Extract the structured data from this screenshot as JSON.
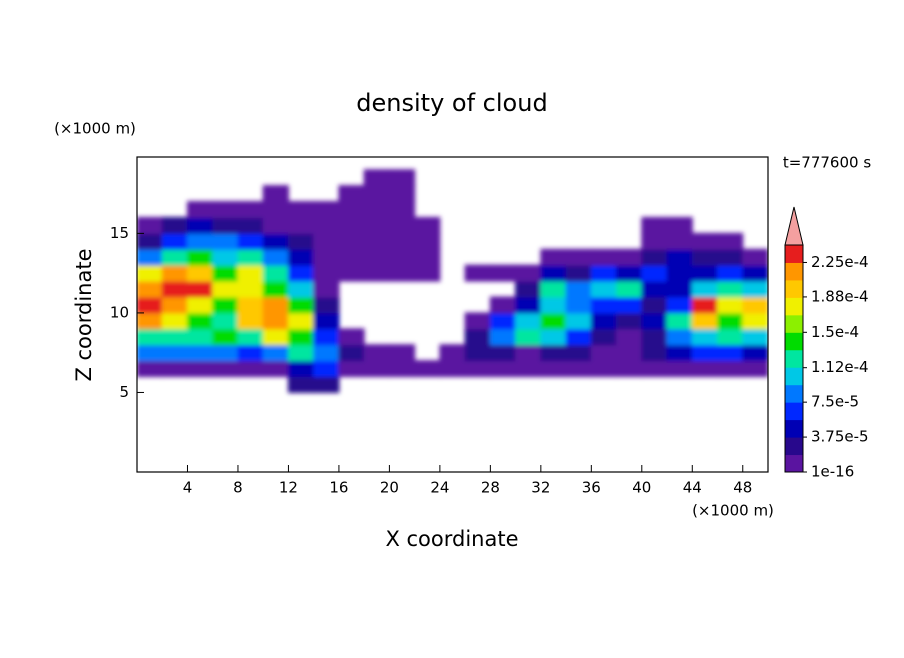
{
  "chart_data": {
    "type": "contour",
    "title": "density of cloud",
    "x_label": "X coordinate",
    "y_label": "Z coordinate",
    "x_unit": "(×1000 m)",
    "y_unit": "(×1000 m)",
    "time_label": "t=777600 s",
    "xlim": [
      0,
      50
    ],
    "ylim": [
      0,
      19.8
    ],
    "xticks": [
      4,
      8,
      12,
      16,
      20,
      24,
      28,
      32,
      36,
      40,
      44,
      48
    ],
    "yticks": [
      5,
      10,
      15
    ],
    "x": [
      1,
      3,
      5,
      7,
      9,
      11,
      13,
      15,
      17,
      19,
      21,
      23,
      25,
      27,
      29,
      31,
      33,
      35,
      37,
      39,
      41,
      43,
      45,
      47,
      49
    ],
    "y": [
      5.5,
      6.5,
      7.5,
      8.5,
      9.5,
      10.5,
      11.5,
      12.5,
      13.5,
      14.5,
      15.5,
      16.5,
      17.5,
      18.5
    ],
    "z": [
      [
        null,
        null,
        null,
        null,
        null,
        null,
        3e-05,
        3e-05,
        null,
        null,
        null,
        null,
        null,
        null,
        null,
        null,
        null,
        null,
        null,
        null,
        null,
        null,
        null,
        null,
        null
      ],
      [
        1e-05,
        1e-05,
        1e-05,
        1e-05,
        1e-05,
        1e-05,
        5e-05,
        7e-05,
        1e-05,
        1e-05,
        1e-05,
        1e-05,
        1e-05,
        1e-05,
        1e-05,
        1e-05,
        1e-05,
        1e-05,
        1e-05,
        1e-05,
        1e-05,
        1e-05,
        1e-05,
        1e-05,
        1e-05
      ],
      [
        9e-05,
        9e-05,
        9e-05,
        9e-05,
        7e-05,
        9e-05,
        0.00013,
        9e-05,
        3e-05,
        1e-05,
        1e-05,
        null,
        1e-05,
        3e-05,
        3e-05,
        1e-05,
        3e-05,
        3e-05,
        1e-05,
        1e-05,
        3e-05,
        5e-05,
        7e-05,
        7e-05,
        5e-05
      ],
      [
        0.00013,
        0.00013,
        0.00013,
        0.00015,
        0.00013,
        0.00017,
        0.00015,
        7e-05,
        1e-05,
        null,
        null,
        null,
        null,
        3e-05,
        9e-05,
        0.00013,
        0.00011,
        7e-05,
        3e-05,
        1e-05,
        3e-05,
        9e-05,
        0.00011,
        0.00013,
        0.00011
      ],
      [
        0.00021,
        0.00017,
        0.00015,
        0.00013,
        0.00019,
        0.00021,
        0.00017,
        5e-05,
        null,
        null,
        null,
        null,
        null,
        1e-05,
        7e-05,
        0.00011,
        0.00015,
        0.00011,
        5e-05,
        3e-05,
        5e-05,
        0.00013,
        0.00019,
        0.00015,
        0.00017
      ],
      [
        0.00024,
        0.00021,
        0.00017,
        0.00015,
        0.00019,
        0.00021,
        0.00015,
        3e-05,
        null,
        null,
        null,
        null,
        null,
        null,
        1e-05,
        5e-05,
        0.00011,
        9e-05,
        7e-05,
        7e-05,
        3e-05,
        7e-05,
        0.00023,
        0.00017,
        0.00019
      ],
      [
        0.00021,
        0.00023,
        0.00024,
        0.00017,
        0.00017,
        0.00015,
        0.00011,
        1e-05,
        null,
        null,
        null,
        null,
        null,
        null,
        null,
        3e-05,
        0.00013,
        9e-05,
        0.00011,
        0.00013,
        5e-05,
        5e-05,
        0.00011,
        0.00013,
        0.00011
      ],
      [
        0.00017,
        0.00021,
        0.00019,
        0.00015,
        0.00017,
        0.00013,
        7e-05,
        1e-05,
        1e-05,
        1e-05,
        1e-05,
        1e-05,
        null,
        1e-05,
        1e-05,
        1e-05,
        5e-05,
        3e-05,
        7e-05,
        5e-05,
        7e-05,
        5e-05,
        5e-05,
        7e-05,
        5e-05
      ],
      [
        9e-05,
        0.00013,
        0.00015,
        0.00011,
        0.00013,
        9e-05,
        5e-05,
        1e-05,
        1e-05,
        1e-05,
        1e-05,
        1e-05,
        null,
        null,
        null,
        null,
        1e-05,
        1e-05,
        1e-05,
        1e-05,
        3e-05,
        5e-05,
        3e-05,
        3e-05,
        1e-05
      ],
      [
        3e-05,
        7e-05,
        9e-05,
        9e-05,
        7e-05,
        5e-05,
        3e-05,
        1e-05,
        1e-05,
        1e-05,
        1e-05,
        1e-05,
        null,
        null,
        null,
        null,
        null,
        null,
        null,
        null,
        1e-05,
        1e-05,
        1e-05,
        1e-05,
        null
      ],
      [
        1e-05,
        3e-05,
        5e-05,
        3e-05,
        3e-05,
        1e-05,
        1e-05,
        1e-05,
        1e-05,
        1e-05,
        1e-05,
        1e-05,
        null,
        null,
        null,
        null,
        null,
        null,
        null,
        null,
        1e-05,
        1e-05,
        null,
        null,
        null
      ],
      [
        null,
        null,
        1e-05,
        1e-05,
        1e-05,
        1e-05,
        1e-05,
        1e-05,
        1e-05,
        1e-05,
        1e-05,
        null,
        null,
        null,
        null,
        null,
        null,
        null,
        null,
        null,
        null,
        null,
        null,
        null,
        null
      ],
      [
        null,
        null,
        null,
        null,
        null,
        1e-05,
        null,
        null,
        1e-05,
        1e-05,
        1e-05,
        null,
        null,
        null,
        null,
        null,
        null,
        null,
        null,
        null,
        null,
        null,
        null,
        null,
        null
      ],
      [
        null,
        null,
        null,
        null,
        null,
        null,
        null,
        null,
        null,
        1e-05,
        1e-05,
        null,
        null,
        null,
        null,
        null,
        null,
        null,
        null,
        null,
        null,
        null,
        null,
        null,
        null
      ]
    ],
    "colorbar": {
      "clim": [
        0,
        0.00024375
      ],
      "colors": [
        "#5a14a0",
        "#28088c",
        "#0000b4",
        "#0028ff",
        "#0078ff",
        "#00c8e6",
        "#00e6a0",
        "#00dc00",
        "#8cf000",
        "#f0f000",
        "#ffc800",
        "#ff9600",
        "#e61e1e"
      ],
      "over_color": "#f4a0a0",
      "ticks": [
        1e-16,
        {
          "value": 3.75e-05,
          "label": "3.75e-5"
        },
        {
          "value": 7.5e-05,
          "label": "7.5e-5"
        },
        {
          "value": 0.000112,
          "label": "1.12e-4"
        },
        {
          "value": 0.00015,
          "label": "1.5e-4"
        },
        {
          "value": 0.000188,
          "label": "1.88e-4"
        },
        {
          "value": 0.000225,
          "label": "2.25e-4"
        }
      ]
    }
  }
}
